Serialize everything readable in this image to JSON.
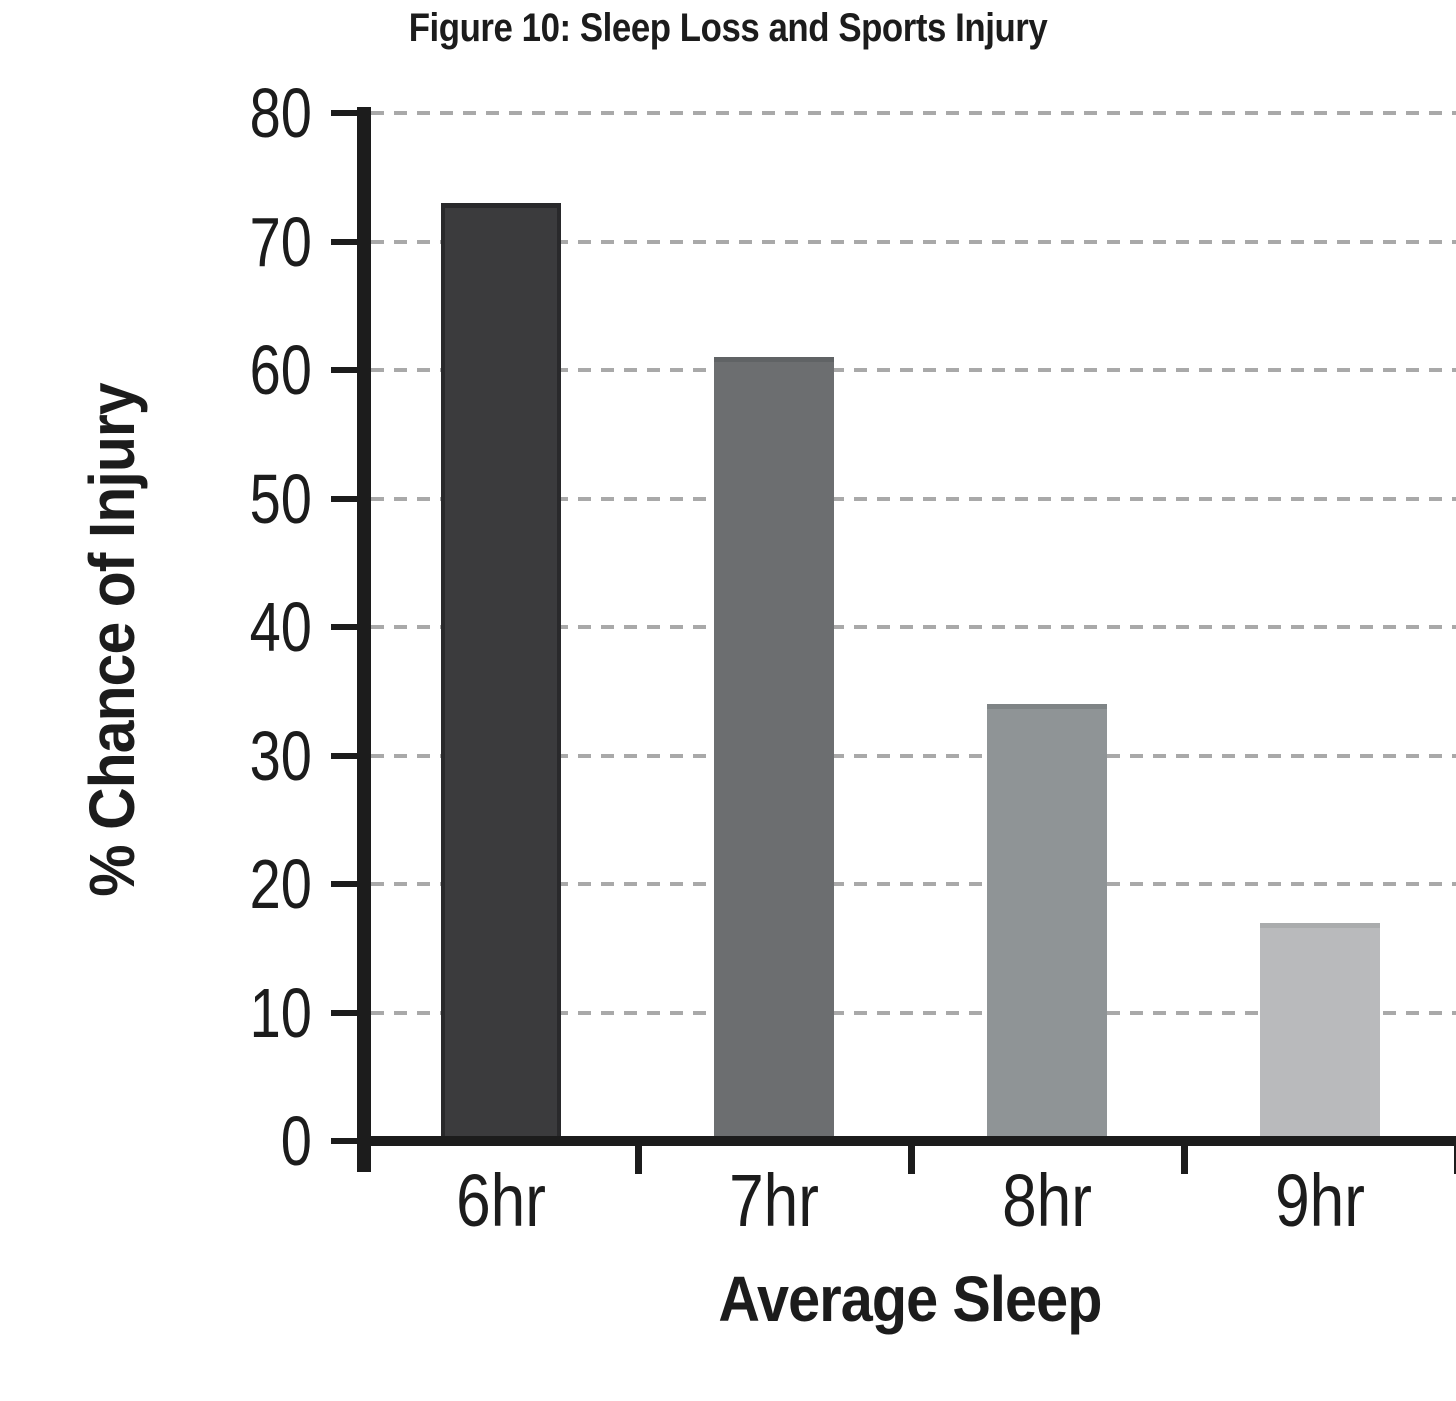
{
  "figure": {
    "title": "Figure 10: Sleep Loss and Sports Injury"
  },
  "colors": {
    "background": "#ffffff",
    "axis": "#1c1c1c",
    "text": "#1c1c1c",
    "gridline": "#a9a9a9"
  },
  "chart_data": {
    "type": "bar",
    "title": "Figure 10: Sleep Loss and Sports Injury",
    "xlabel": "Average Sleep",
    "ylabel": "% Chance of Injury",
    "categories": [
      "6hr",
      "7hr",
      "8hr",
      "9hr"
    ],
    "values": [
      73,
      61,
      34,
      17
    ],
    "bar_colors": [
      "#3b3b3d",
      "#6c6e70",
      "#8f9496",
      "#b9babc"
    ],
    "bar_edge_colors": [
      "#29292b",
      "#606365",
      "#7f8486",
      "#aaacad"
    ],
    "outlined_bars": [
      true,
      false,
      false,
      false
    ],
    "ylim": [
      0,
      80
    ],
    "yticks": [
      0,
      10,
      20,
      30,
      40,
      50,
      60,
      70,
      80
    ],
    "grid": "dashed horizontal gridlines at every 10 units, behind bars",
    "legend": "none",
    "units": "percent"
  }
}
